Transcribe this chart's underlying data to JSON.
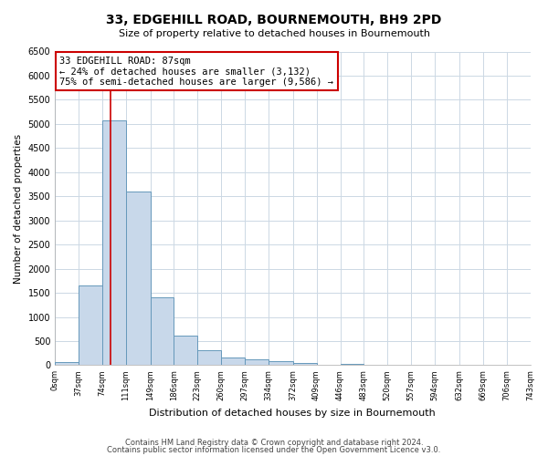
{
  "title": "33, EDGEHILL ROAD, BOURNEMOUTH, BH9 2PD",
  "subtitle": "Size of property relative to detached houses in Bournemouth",
  "xlabel": "Distribution of detached houses by size in Bournemouth",
  "ylabel": "Number of detached properties",
  "bar_color": "#c8d8ea",
  "bar_edge_color": "#6699bb",
  "bin_edges": [
    0,
    37,
    74,
    111,
    149,
    186,
    223,
    260,
    297,
    334,
    372,
    409,
    446,
    483,
    520,
    557,
    594,
    632,
    669,
    706,
    743
  ],
  "bar_heights": [
    60,
    1650,
    5080,
    3600,
    1400,
    610,
    305,
    155,
    120,
    90,
    50,
    0,
    35,
    0,
    0,
    0,
    0,
    0,
    0,
    0
  ],
  "property_line_x": 87,
  "property_line_color": "#cc0000",
  "annotation_line1": "33 EDGEHILL ROAD: 87sqm",
  "annotation_line2": "← 24% of detached houses are smaller (3,132)",
  "annotation_line3": "75% of semi-detached houses are larger (9,586) →",
  "annotation_box_color": "#cc0000",
  "ylim": [
    0,
    6500
  ],
  "yticks": [
    0,
    500,
    1000,
    1500,
    2000,
    2500,
    3000,
    3500,
    4000,
    4500,
    5000,
    5500,
    6000,
    6500
  ],
  "tick_labels": [
    "0sqm",
    "37sqm",
    "74sqm",
    "111sqm",
    "149sqm",
    "186sqm",
    "223sqm",
    "260sqm",
    "297sqm",
    "334sqm",
    "372sqm",
    "409sqm",
    "446sqm",
    "483sqm",
    "520sqm",
    "557sqm",
    "594sqm",
    "632sqm",
    "669sqm",
    "706sqm",
    "743sqm"
  ],
  "footnote1": "Contains HM Land Registry data © Crown copyright and database right 2024.",
  "footnote2": "Contains public sector information licensed under the Open Government Licence v3.0.",
  "background_color": "#ffffff",
  "grid_color": "#ccd8e4"
}
